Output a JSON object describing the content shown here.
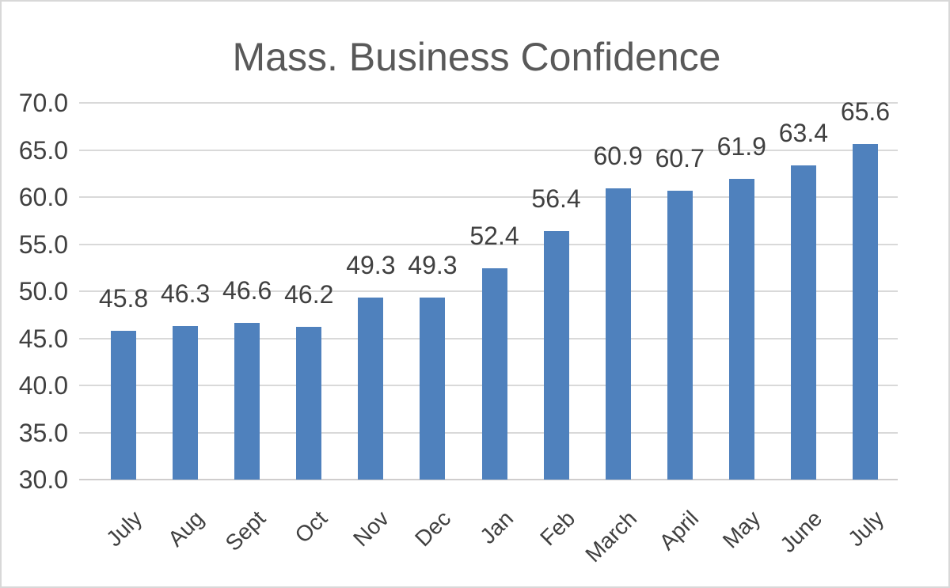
{
  "chart_data": {
    "type": "bar",
    "title": "Mass. Business Confidence",
    "categories": [
      "July",
      "Aug",
      "Sept",
      "Oct",
      "Nov",
      "Dec",
      "Jan",
      "Feb",
      "March",
      "April",
      "May",
      "June",
      "July"
    ],
    "values": [
      45.8,
      46.3,
      46.6,
      46.2,
      49.3,
      49.3,
      52.4,
      56.4,
      60.9,
      60.7,
      61.9,
      63.4,
      65.6
    ],
    "data_labels": [
      "45.8",
      "46.3",
      "46.6",
      "46.2",
      "49.3",
      "49.3",
      "52.4",
      "56.4",
      "60.9",
      "60.7",
      "61.9",
      "63.4",
      "65.6"
    ],
    "xlabel": "",
    "ylabel": "",
    "ylim": [
      30,
      70
    ],
    "ytick_step": 5,
    "ytick_labels": [
      "70.0",
      "65.0",
      "60.0",
      "55.0",
      "50.0",
      "45.0",
      "40.0",
      "35.0",
      "30.0"
    ],
    "grid": true,
    "legend": "none",
    "colors": {
      "bar": "#4f81bd",
      "gridline": "#d9d9d9",
      "axis_line": "#cfcdcd",
      "title_text": "#595959",
      "label_text": "#404040",
      "frame_border": "#d8d8d8",
      "background": "#ffffff"
    }
  }
}
